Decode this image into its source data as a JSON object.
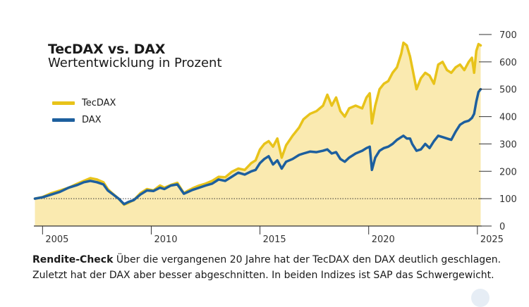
{
  "chart_data": {
    "type": "line",
    "title": "TecDAX vs. DAX",
    "subtitle": "Wertentwicklung in Prozent",
    "xlabel": "",
    "ylabel": "",
    "xlim": [
      2004.6,
      2025.2
    ],
    "ylim": [
      0,
      700
    ],
    "yticks": [
      0,
      100,
      200,
      300,
      400,
      500,
      600,
      700
    ],
    "xticks": [
      2005,
      2010,
      2015,
      2020,
      2025
    ],
    "reference_line": 100,
    "legend_position": "top-left",
    "series": [
      {
        "name": "TecDAX",
        "color": "#e8c31a",
        "fill": "#faeab0",
        "x": [
          2004.65,
          2005.0,
          2005.4,
          2005.8,
          2006.2,
          2006.6,
          2006.9,
          2007.2,
          2007.5,
          2007.8,
          2008.0,
          2008.2,
          2008.5,
          2008.75,
          2008.95,
          2009.2,
          2009.5,
          2009.8,
          2010.1,
          2010.4,
          2010.6,
          2010.9,
          2011.2,
          2011.5,
          2011.7,
          2011.9,
          2012.2,
          2012.5,
          2012.8,
          2013.1,
          2013.4,
          2013.7,
          2014.0,
          2014.3,
          2014.6,
          2014.8,
          2015.0,
          2015.2,
          2015.4,
          2015.6,
          2015.8,
          2016.0,
          2016.2,
          2016.5,
          2016.8,
          2017.0,
          2017.3,
          2017.6,
          2017.9,
          2018.1,
          2018.3,
          2018.5,
          2018.7,
          2018.9,
          2019.1,
          2019.4,
          2019.7,
          2019.9,
          2020.05,
          2020.15,
          2020.3,
          2020.5,
          2020.7,
          2020.9,
          2021.1,
          2021.3,
          2021.5,
          2021.6,
          2021.75,
          2021.9,
          2022.0,
          2022.2,
          2022.4,
          2022.6,
          2022.8,
          2023.0,
          2023.2,
          2023.4,
          2023.6,
          2023.8,
          2024.0,
          2024.2,
          2024.4,
          2024.6,
          2024.75,
          2024.85,
          2024.95,
          2025.05,
          2025.15
        ],
        "values": [
          100,
          106,
          120,
          130,
          140,
          155,
          165,
          175,
          170,
          160,
          135,
          120,
          100,
          78,
          85,
          95,
          120,
          135,
          130,
          148,
          140,
          150,
          158,
          120,
          130,
          138,
          148,
          155,
          165,
          180,
          178,
          198,
          210,
          205,
          230,
          240,
          280,
          300,
          310,
          290,
          320,
          250,
          295,
          330,
          360,
          390,
          410,
          420,
          440,
          480,
          440,
          470,
          420,
          400,
          430,
          440,
          430,
          470,
          485,
          375,
          440,
          500,
          520,
          530,
          560,
          580,
          630,
          670,
          660,
          620,
          580,
          500,
          540,
          560,
          550,
          520,
          590,
          600,
          570,
          560,
          580,
          590,
          570,
          600,
          615,
          560,
          640,
          665,
          660
        ]
      },
      {
        "name": "DAX",
        "color": "#1d5f9e",
        "x": [
          2004.65,
          2005.0,
          2005.4,
          2005.8,
          2006.2,
          2006.6,
          2006.9,
          2007.2,
          2007.5,
          2007.8,
          2008.0,
          2008.2,
          2008.5,
          2008.75,
          2008.95,
          2009.2,
          2009.5,
          2009.8,
          2010.1,
          2010.4,
          2010.6,
          2010.9,
          2011.2,
          2011.5,
          2011.7,
          2011.9,
          2012.2,
          2012.5,
          2012.8,
          2013.1,
          2013.4,
          2013.7,
          2014.0,
          2014.3,
          2014.6,
          2014.8,
          2015.0,
          2015.2,
          2015.4,
          2015.6,
          2015.8,
          2016.0,
          2016.2,
          2016.5,
          2016.8,
          2017.0,
          2017.3,
          2017.6,
          2017.9,
          2018.1,
          2018.3,
          2018.5,
          2018.7,
          2018.9,
          2019.1,
          2019.4,
          2019.7,
          2019.9,
          2020.05,
          2020.15,
          2020.3,
          2020.5,
          2020.7,
          2020.9,
          2021.1,
          2021.3,
          2021.5,
          2021.6,
          2021.75,
          2021.9,
          2022.0,
          2022.2,
          2022.4,
          2022.6,
          2022.8,
          2023.0,
          2023.2,
          2023.4,
          2023.6,
          2023.8,
          2024.0,
          2024.2,
          2024.4,
          2024.6,
          2024.75,
          2024.85,
          2024.95,
          2025.05,
          2025.15
        ],
        "values": [
          100,
          105,
          115,
          125,
          140,
          150,
          160,
          165,
          160,
          152,
          130,
          118,
          100,
          80,
          88,
          95,
          115,
          130,
          128,
          140,
          135,
          148,
          152,
          118,
          125,
          132,
          140,
          148,
          155,
          170,
          165,
          180,
          195,
          188,
          200,
          205,
          230,
          245,
          255,
          225,
          240,
          210,
          235,
          245,
          260,
          265,
          272,
          270,
          275,
          280,
          265,
          270,
          245,
          235,
          250,
          265,
          275,
          285,
          290,
          205,
          250,
          275,
          285,
          290,
          300,
          315,
          325,
          330,
          320,
          320,
          300,
          275,
          280,
          300,
          285,
          310,
          330,
          325,
          320,
          315,
          345,
          370,
          380,
          385,
          395,
          410,
          455,
          490,
          500
        ]
      }
    ]
  },
  "caption": {
    "lead": "Rendite-Check",
    "text": " Über die vergangenen 20 Jahre hat der TecDAX den DAX deutlich geschlagen. Zuletzt hat der DAX aber besser abgeschnitten. In beiden Indizes ist SAP das Schwergewicht."
  }
}
